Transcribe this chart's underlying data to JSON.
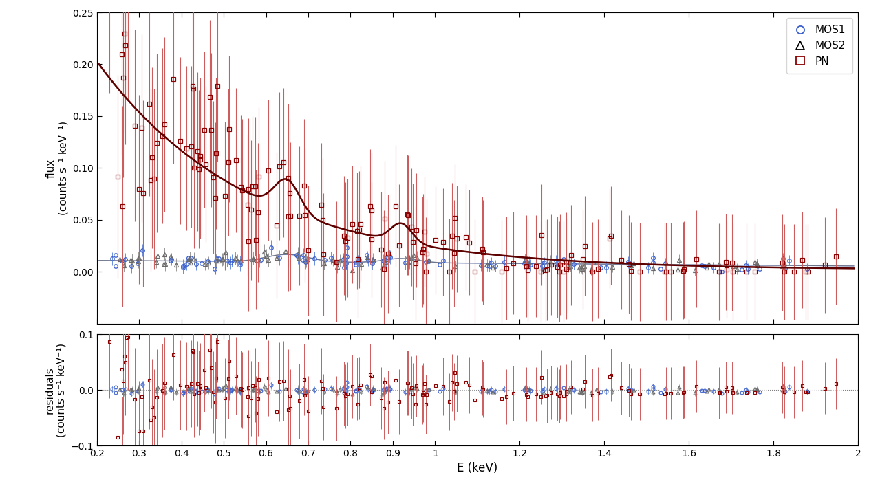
{
  "title": "",
  "xlabel": "E (keV)",
  "ylabel_main": "flux\n(counts s⁻¹ keV⁻¹)",
  "ylabel_resid": "residuals\n(counts s⁻¹ keV⁻¹)",
  "xlim": [
    0.2,
    2.0
  ],
  "ylim_main": [
    -0.05,
    0.25
  ],
  "ylim_resid": [
    -0.1,
    0.1
  ],
  "xticks": [
    0.2,
    0.3,
    0.4,
    0.5,
    0.6,
    0.7,
    0.8,
    0.9,
    1.0,
    1.2,
    1.4,
    1.6,
    1.8,
    2.0
  ],
  "yticks_main": [
    0.0,
    0.05,
    0.1,
    0.15,
    0.2,
    0.25
  ],
  "yticks_resid": [
    -0.1,
    0.0,
    0.1
  ],
  "colors": {
    "MOS1": "#3a5fcd",
    "MOS1_light": "#6a8fdf",
    "MOS2": "#696969",
    "MOS2_light": "#999999",
    "PN": "#8b0000",
    "PN_light": "#cd5c5c",
    "model_PN": "#5c0000",
    "model_PN_step": "#cd5c5c"
  },
  "legend_labels": [
    "MOS1",
    "MOS2",
    "PN"
  ],
  "background": "#ffffff"
}
